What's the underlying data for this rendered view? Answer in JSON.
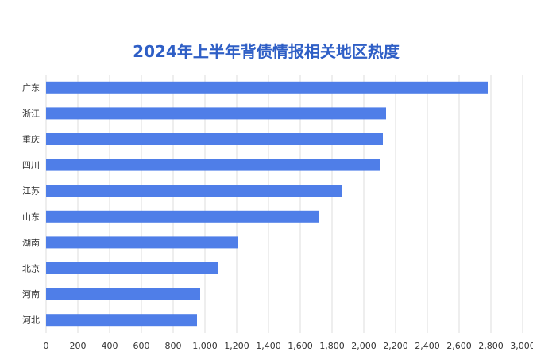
{
  "chart_data": {
    "type": "bar",
    "orientation": "horizontal",
    "title": "2024年上半年背债情报相关地区热度",
    "categories": [
      "广东",
      "浙江",
      "重庆",
      "四川",
      "江苏",
      "山东",
      "湖南",
      "北京",
      "河南",
      "河北"
    ],
    "values": [
      2780,
      2140,
      2120,
      2100,
      1860,
      1720,
      1210,
      1080,
      970,
      950
    ],
    "xlim": [
      0,
      3000
    ],
    "xticks": [
      "0",
      "200",
      "400",
      "600",
      "800",
      "1,000",
      "1,200",
      "1,400",
      "1,600",
      "1,800",
      "2,000",
      "2,200",
      "2,400",
      "2,600",
      "2,800",
      "3,000"
    ],
    "grid": "vertical",
    "legend": "none"
  },
  "colors": {
    "bar": "#4f7ee8",
    "title": "#2f5fc6",
    "grid": "#dddddd"
  }
}
